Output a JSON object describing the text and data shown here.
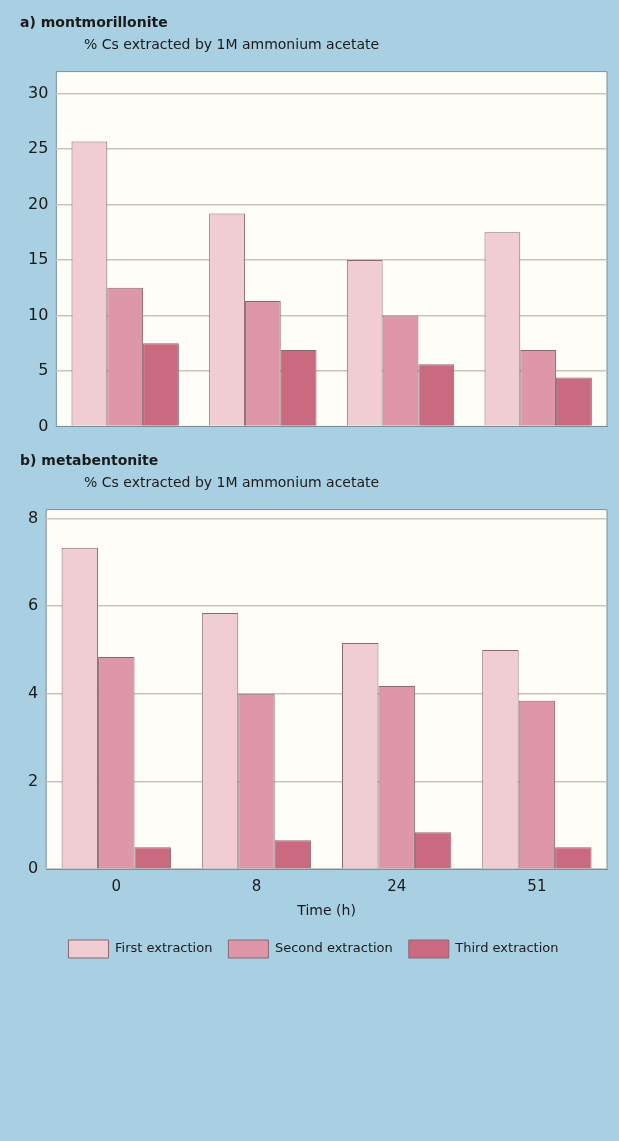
{
  "chart_data": [
    {
      "type": "bar",
      "title": "a) montmorillonite",
      "ylabel": "% Cs extracted by 1M ammonium acetate",
      "categories": [
        "0",
        "8",
        "24",
        "51"
      ],
      "series": [
        {
          "color": "#f0ccd3",
          "values": [
            25.7,
            19.2,
            15,
            17.5
          ]
        },
        {
          "color": "#dd97a8",
          "values": [
            12.5,
            11.3,
            10,
            6.9
          ]
        },
        {
          "color": "#c96a80",
          "values": [
            7.5,
            6.9,
            5.6,
            4.4
          ]
        }
      ],
      "ylim": [
        0,
        32
      ],
      "yticks": [
        0,
        5,
        10,
        15,
        20,
        25,
        30
      ],
      "grid": "y",
      "legend": false,
      "tick_labels": "y"
    },
    {
      "type": "bar",
      "title": "b) metabentonite",
      "ylabel": "% Cs extracted by 1M ammonium acetate",
      "xlabel": "Time (h)",
      "categories": [
        "0",
        "8",
        "24",
        "51"
      ],
      "series": [
        {
          "name": "First extraction",
          "color": "#f0ccd3",
          "values": [
            7.33,
            5.84,
            5.16,
            5.0
          ]
        },
        {
          "name": "Second extraction",
          "color": "#dd97a8",
          "values": [
            4.84,
            4.0,
            4.18,
            3.84
          ]
        },
        {
          "name": "Third extraction",
          "color": "#c96a80",
          "values": [
            0.5,
            0.66,
            0.84,
            0.5
          ]
        }
      ],
      "ylim": [
        0,
        8.2
      ],
      "yticks": [
        0,
        2,
        4,
        6,
        8
      ],
      "grid": "y",
      "legend": "bottom"
    }
  ]
}
